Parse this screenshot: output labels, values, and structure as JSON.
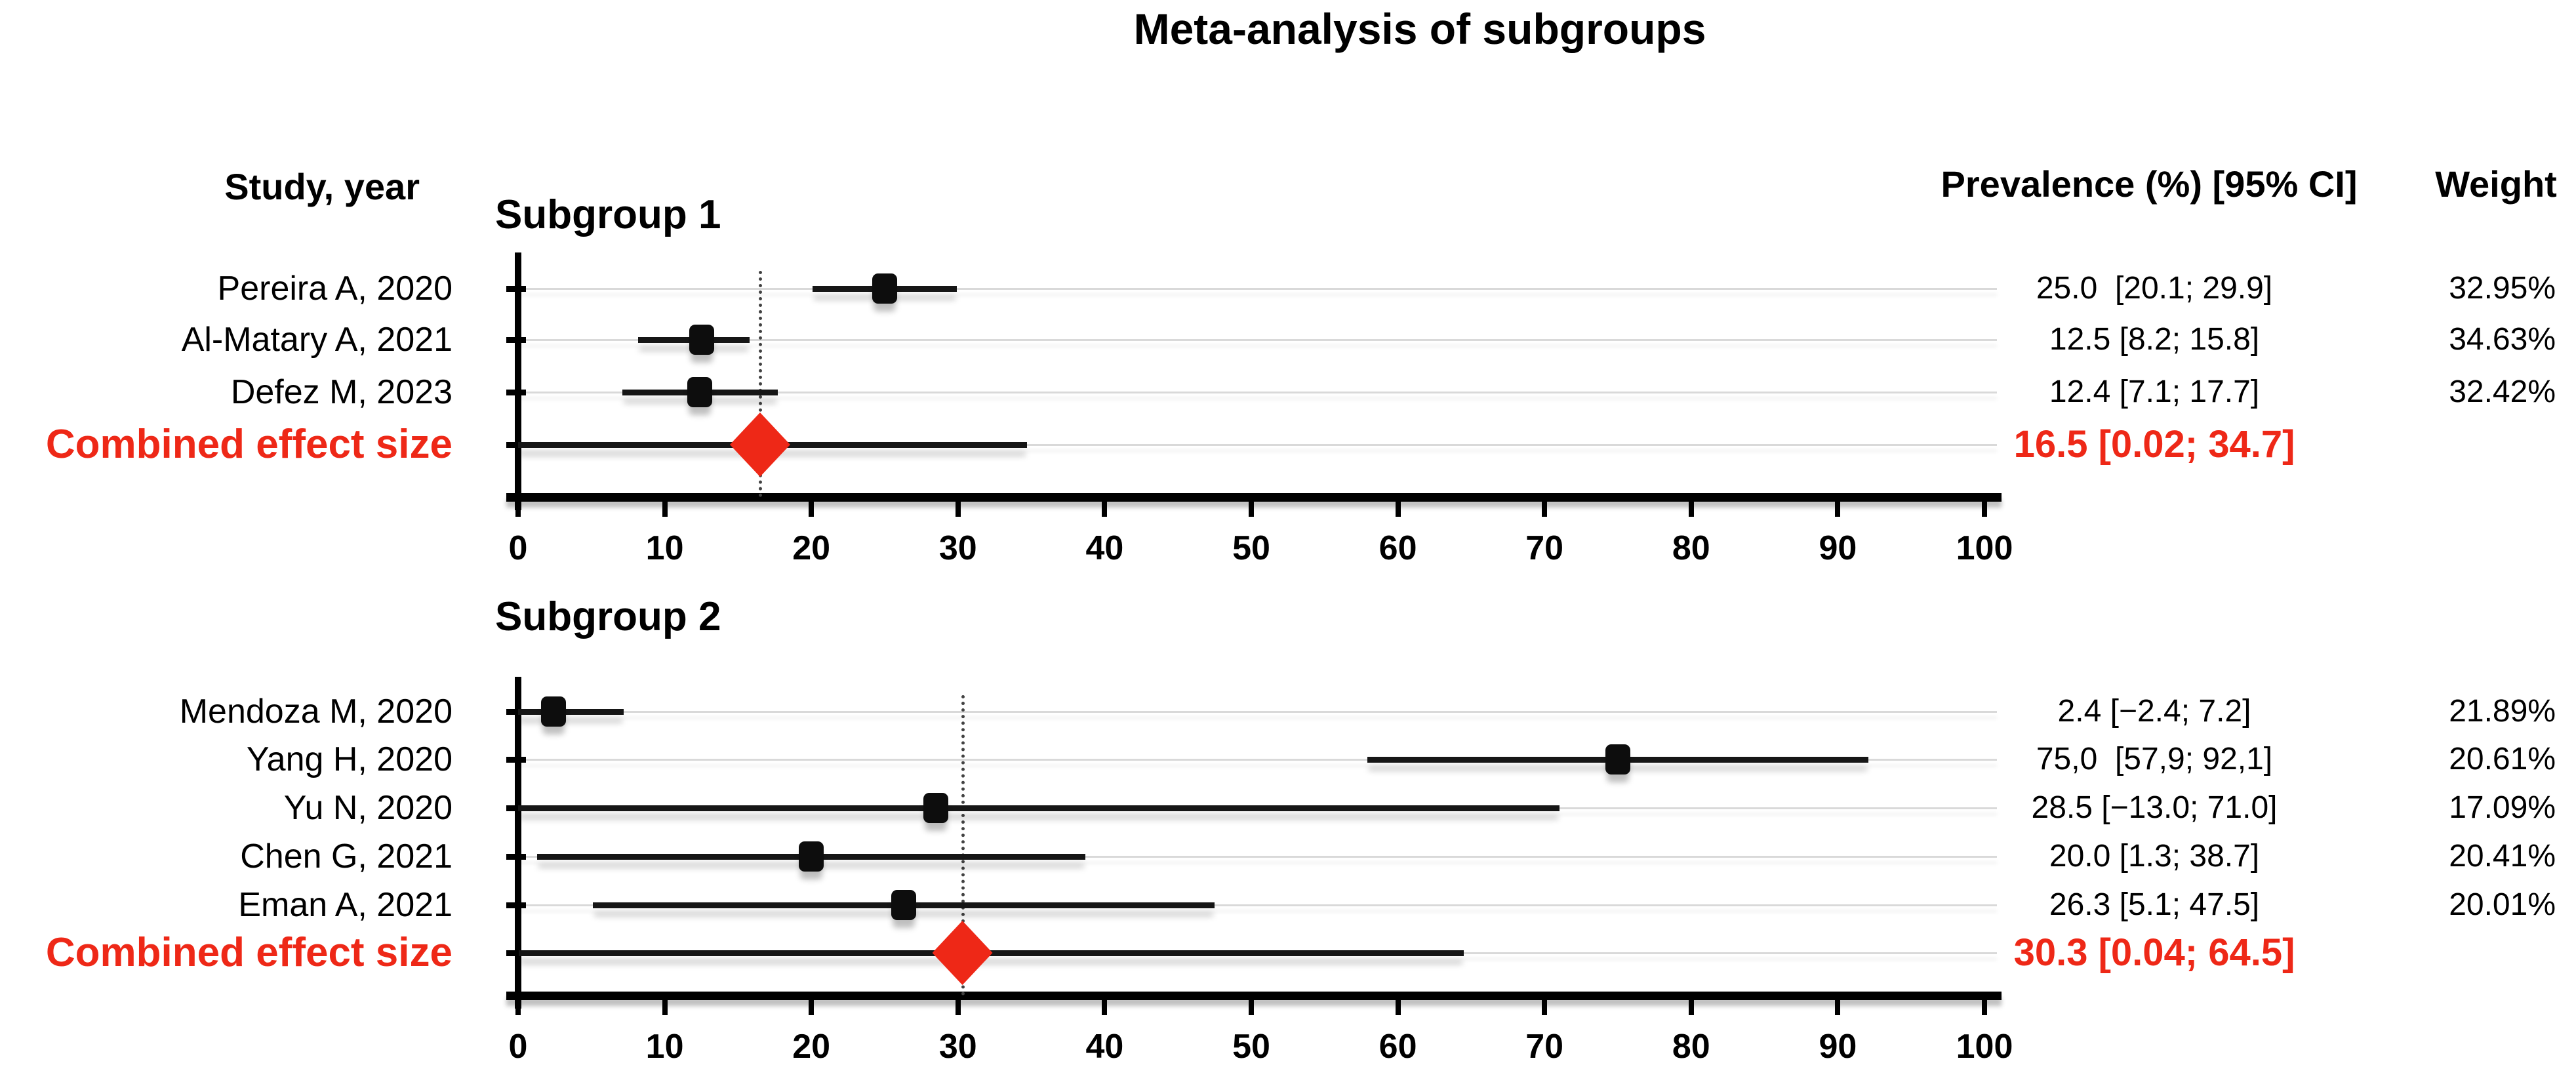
{
  "title": "Meta-analysis of subgroups",
  "columns": {
    "study": "Study, year",
    "prevalence": "Prevalence (%) [95% CI]",
    "weight": "Weight"
  },
  "colors": {
    "accent_red": "#ee2817",
    "marker_black": "#0d0d0d",
    "line_black": "#161616",
    "grid_gray": "#d9d9d9",
    "axis_black": "#000000"
  },
  "axis": {
    "min": 0,
    "max": 100,
    "step": 10,
    "tick_labels": [
      "0",
      "10",
      "20",
      "30",
      "40",
      "50",
      "60",
      "70",
      "80",
      "90",
      "100"
    ]
  },
  "chart_data": [
    {
      "type": "forest",
      "subgroup_label": "Subgroup 1",
      "studies": [
        {
          "label": "Pereira A, 2020",
          "estimate": 25.0,
          "ci_low": 20.1,
          "ci_high": 29.9,
          "prevalence_text": "25.0  [20.1; 29.9]",
          "weight_text": "32.95%"
        },
        {
          "label": "Al-Matary A, 2021",
          "estimate": 12.5,
          "ci_low": 8.2,
          "ci_high": 15.8,
          "prevalence_text": "12.5 [8.2; 15.8]",
          "weight_text": "34.63%"
        },
        {
          "label": "Defez M, 2023",
          "estimate": 12.4,
          "ci_low": 7.1,
          "ci_high": 17.7,
          "prevalence_text": "12.4 [7.1; 17.7]",
          "weight_text": "32.42%"
        }
      ],
      "combined": {
        "label": "Combined effect size",
        "estimate": 16.5,
        "ci_low": 0.02,
        "ci_high": 34.7,
        "prevalence_text": "16.5 [0.02; 34.7]"
      }
    },
    {
      "type": "forest",
      "subgroup_label": "Subgroup 2",
      "studies": [
        {
          "label": "Mendoza M, 2020",
          "estimate": 2.4,
          "ci_low": -2.4,
          "ci_high": 7.2,
          "prevalence_text": "2.4 [−2.4; 7.2]",
          "weight_text": "21.89%"
        },
        {
          "label": "Yang H, 2020",
          "estimate": 75.0,
          "ci_low": 57.9,
          "ci_high": 92.1,
          "prevalence_text": "75,0  [57,9; 92,1]",
          "weight_text": "20.61%"
        },
        {
          "label": "Yu N, 2020",
          "estimate": 28.5,
          "ci_low": -13.0,
          "ci_high": 71.0,
          "prevalence_text": "28.5 [−13.0; 71.0]",
          "weight_text": "17.09%"
        },
        {
          "label": "Chen G, 2021",
          "estimate": 20.0,
          "ci_low": 1.3,
          "ci_high": 38.7,
          "prevalence_text": "20.0 [1.3; 38.7]",
          "weight_text": "20.41%"
        },
        {
          "label": "Eman A, 2021",
          "estimate": 26.3,
          "ci_low": 5.1,
          "ci_high": 47.5,
          "prevalence_text": "26.3 [5.1; 47.5]",
          "weight_text": "20.01%"
        }
      ],
      "combined": {
        "label": "Combined effect size",
        "estimate": 30.3,
        "ci_low": 0.04,
        "ci_high": 64.5,
        "prevalence_text": "30.3 [0.04; 64.5]"
      }
    }
  ]
}
